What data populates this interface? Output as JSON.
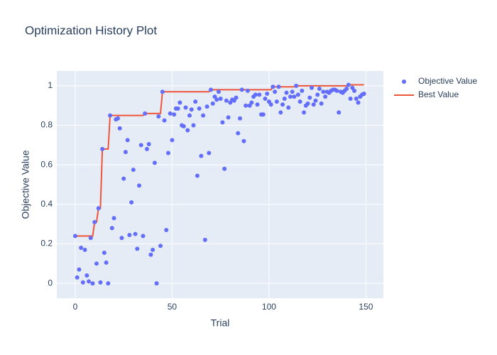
{
  "chart_data": {
    "type": "scatter",
    "title": "Optimization History Plot",
    "x_label": "Trial",
    "y_label": "Objective Value",
    "xlim": [
      -9.5,
      159
    ],
    "ylim": [
      -0.075,
      1.075
    ],
    "xticks": [
      0,
      50,
      100,
      150
    ],
    "yticks": [
      0,
      0.2,
      0.4,
      0.6,
      0.8,
      1
    ],
    "grid": true,
    "legend": "right",
    "x": [
      0,
      1,
      2,
      3,
      4,
      5,
      6,
      7,
      8,
      9,
      10,
      11,
      12,
      13,
      14,
      15,
      16,
      17,
      18,
      19,
      20,
      21,
      22,
      23,
      24,
      25,
      26,
      27,
      28,
      29,
      30,
      31,
      32,
      33,
      34,
      35,
      36,
      37,
      38,
      39,
      40,
      41,
      42,
      43,
      44,
      45,
      46,
      47,
      48,
      49,
      50,
      51,
      52,
      53,
      54,
      55,
      56,
      57,
      58,
      59,
      60,
      61,
      62,
      63,
      64,
      65,
      66,
      67,
      68,
      69,
      70,
      71,
      72,
      73,
      74,
      75,
      76,
      77,
      78,
      79,
      80,
      81,
      82,
      83,
      84,
      85,
      86,
      87,
      88,
      89,
      90,
      91,
      92,
      93,
      94,
      95,
      96,
      97,
      98,
      99,
      100,
      101,
      102,
      103,
      104,
      105,
      106,
      107,
      108,
      109,
      110,
      111,
      112,
      113,
      114,
      115,
      116,
      117,
      118,
      119,
      120,
      121,
      122,
      123,
      124,
      125,
      126,
      127,
      128,
      129,
      130,
      131,
      132,
      133,
      134,
      135,
      136,
      137,
      138,
      139,
      140,
      141,
      142,
      143,
      144,
      145,
      146,
      147,
      148,
      149
    ],
    "series": [
      {
        "name": "Objective Value",
        "color": "#636efa",
        "mode": "markers",
        "values": [
          0.24,
          0.03,
          0.07,
          0.18,
          0.005,
          0.17,
          0.04,
          0.01,
          0.23,
          0.0,
          0.31,
          0.1,
          0.38,
          0.005,
          0.68,
          0.155,
          0.105,
          0.0,
          0.85,
          0.28,
          0.33,
          0.83,
          0.835,
          0.785,
          0.23,
          0.53,
          0.665,
          0.725,
          0.245,
          0.41,
          0.575,
          0.25,
          0.175,
          0.495,
          0.7,
          0.24,
          0.86,
          0.68,
          0.705,
          0.145,
          0.17,
          0.61,
          0.0,
          0.845,
          0.19,
          0.97,
          0.825,
          0.27,
          0.66,
          0.86,
          0.725,
          0.855,
          0.885,
          0.885,
          0.915,
          0.8,
          0.795,
          0.89,
          0.775,
          0.85,
          0.88,
          0.8,
          0.92,
          0.545,
          0.885,
          0.645,
          0.85,
          0.22,
          0.895,
          0.66,
          0.98,
          0.91,
          0.945,
          0.93,
          0.97,
          0.935,
          0.815,
          0.58,
          0.925,
          0.84,
          0.915,
          0.93,
          0.925,
          0.94,
          0.76,
          0.835,
          0.98,
          0.72,
          0.9,
          0.975,
          0.9,
          0.915,
          0.945,
          0.955,
          0.905,
          0.955,
          0.855,
          0.855,
          0.935,
          0.96,
          0.92,
          0.905,
          0.995,
          0.97,
          0.92,
          0.995,
          0.865,
          0.905,
          0.935,
          0.965,
          0.89,
          0.945,
          0.97,
          0.945,
          1.0,
          0.955,
          0.92,
          0.975,
          0.865,
          0.9,
          0.91,
          0.94,
          0.99,
          0.905,
          0.925,
          0.955,
          0.985,
          0.91,
          0.97,
          0.945,
          0.97,
          0.965,
          0.975,
          0.98,
          0.98,
          0.975,
          0.865,
          0.97,
          0.965,
          0.975,
          0.985,
          1.005,
          0.935,
          0.99,
          0.975,
          0.935,
          0.915,
          0.945,
          0.955,
          0.96
        ]
      },
      {
        "name": "Best Value",
        "color": "#ef553b",
        "mode": "lines",
        "values": [
          0.24,
          0.24,
          0.24,
          0.24,
          0.24,
          0.24,
          0.24,
          0.24,
          0.24,
          0.24,
          0.31,
          0.31,
          0.38,
          0.38,
          0.68,
          0.68,
          0.68,
          0.68,
          0.85,
          0.85,
          0.85,
          0.85,
          0.85,
          0.85,
          0.85,
          0.85,
          0.85,
          0.85,
          0.85,
          0.85,
          0.85,
          0.85,
          0.85,
          0.85,
          0.85,
          0.85,
          0.86,
          0.86,
          0.86,
          0.86,
          0.86,
          0.86,
          0.86,
          0.86,
          0.86,
          0.97,
          0.97,
          0.97,
          0.97,
          0.97,
          0.97,
          0.97,
          0.97,
          0.97,
          0.97,
          0.97,
          0.97,
          0.97,
          0.97,
          0.97,
          0.97,
          0.97,
          0.97,
          0.97,
          0.97,
          0.97,
          0.97,
          0.97,
          0.97,
          0.97,
          0.98,
          0.98,
          0.98,
          0.98,
          0.98,
          0.98,
          0.98,
          0.98,
          0.98,
          0.98,
          0.98,
          0.98,
          0.98,
          0.98,
          0.98,
          0.98,
          0.98,
          0.98,
          0.98,
          0.98,
          0.98,
          0.98,
          0.98,
          0.98,
          0.98,
          0.98,
          0.98,
          0.98,
          0.98,
          0.98,
          0.98,
          0.98,
          0.995,
          0.995,
          0.995,
          0.995,
          0.995,
          0.995,
          0.995,
          0.995,
          0.995,
          0.995,
          0.995,
          0.995,
          1.0,
          1.0,
          1.0,
          1.0,
          1.0,
          1.0,
          1.0,
          1.0,
          1.0,
          1.0,
          1.0,
          1.0,
          1.0,
          1.0,
          1.0,
          1.0,
          1.0,
          1.0,
          1.0,
          1.0,
          1.0,
          1.0,
          1.0,
          1.0,
          1.0,
          1.0,
          1.0,
          1.005,
          1.005,
          1.005,
          1.005,
          1.005,
          1.005,
          1.005,
          1.005,
          1.005
        ]
      }
    ]
  }
}
